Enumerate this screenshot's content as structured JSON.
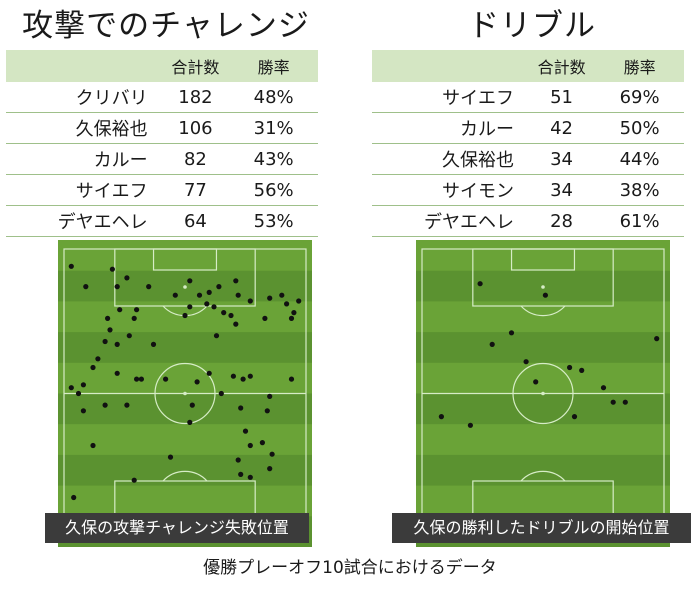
{
  "left_panel": {
    "title": "攻撃でのチャレンジ",
    "headers": [
      "",
      "合計数",
      "勝率"
    ],
    "rows": [
      {
        "name": "クリバリ",
        "count": "182",
        "rate": "48%"
      },
      {
        "name": "久保裕也",
        "count": "106",
        "rate": "31%"
      },
      {
        "name": "カルー",
        "count": "82",
        "rate": "43%"
      },
      {
        "name": "サイエフ",
        "count": "77",
        "rate": "56%"
      },
      {
        "name": "デヤエヘレ",
        "count": "64",
        "rate": "53%"
      }
    ],
    "caption": "久保の攻撃チャレンジ失敗位置"
  },
  "right_panel": {
    "title": "ドリブル",
    "headers": [
      "",
      "合計数",
      "勝率"
    ],
    "rows": [
      {
        "name": "サイエフ",
        "count": "51",
        "rate": "69%"
      },
      {
        "name": "カルー",
        "count": "42",
        "rate": "50%"
      },
      {
        "name": "久保裕也",
        "count": "34",
        "rate": "44%"
      },
      {
        "name": "サイモン",
        "count": "34",
        "rate": "38%"
      },
      {
        "name": "デヤエヘレ",
        "count": "28",
        "rate": "61%"
      }
    ],
    "caption": "久保の勝利したドリブルの開始位置"
  },
  "footer": "優勝プレーオフ10試合におけるデータ",
  "colors": {
    "pitch_light": "#6aa337",
    "pitch_dark": "#5b9230",
    "line": "#d6ecc6",
    "dot": "#111111",
    "table_header": "#d4e6c3",
    "caption_bg": "#3b3b3b"
  },
  "chart_data": [
    {
      "type": "scatter",
      "name": "攻撃チャレンジ失敗位置",
      "xlim": [
        0,
        100
      ],
      "ylim": [
        0,
        100
      ],
      "points": [
        [
          3,
          6
        ],
        [
          20,
          7
        ],
        [
          26,
          10
        ],
        [
          22,
          13
        ],
        [
          9,
          13
        ],
        [
          35,
          13
        ],
        [
          52,
          11
        ],
        [
          71,
          11
        ],
        [
          64,
          13
        ],
        [
          60,
          15
        ],
        [
          46,
          16
        ],
        [
          56,
          16
        ],
        [
          72,
          16
        ],
        [
          85,
          17
        ],
        [
          77,
          18
        ],
        [
          59,
          19
        ],
        [
          52,
          20
        ],
        [
          62,
          20
        ],
        [
          92,
          19
        ],
        [
          90,
          16
        ],
        [
          97,
          18
        ],
        [
          23,
          21
        ],
        [
          30,
          21
        ],
        [
          66,
          22
        ],
        [
          69,
          23
        ],
        [
          29,
          24
        ],
        [
          18,
          24
        ],
        [
          83,
          24
        ],
        [
          95,
          22
        ],
        [
          50,
          23
        ],
        [
          94,
          24
        ],
        [
          71,
          26
        ],
        [
          19,
          28
        ],
        [
          27,
          30
        ],
        [
          63,
          30
        ],
        [
          17,
          32
        ],
        [
          22,
          33
        ],
        [
          37,
          33
        ],
        [
          14,
          38
        ],
        [
          12,
          41
        ],
        [
          22,
          43
        ],
        [
          32,
          45
        ],
        [
          30,
          45
        ],
        [
          42,
          45
        ],
        [
          74,
          45
        ],
        [
          77,
          44
        ],
        [
          60,
          43
        ],
        [
          8,
          47
        ],
        [
          94,
          45
        ],
        [
          70,
          44
        ],
        [
          55,
          46
        ],
        [
          3,
          48
        ],
        [
          6,
          50
        ],
        [
          65,
          50
        ],
        [
          85,
          51
        ],
        [
          17,
          54
        ],
        [
          26,
          54
        ],
        [
          53,
          54
        ],
        [
          8,
          56
        ],
        [
          73,
          55
        ],
        [
          84,
          56
        ],
        [
          52,
          60
        ],
        [
          75,
          63
        ],
        [
          82,
          67
        ],
        [
          77,
          68
        ],
        [
          12,
          68
        ],
        [
          86,
          71
        ],
        [
          44,
          72
        ],
        [
          72,
          73
        ],
        [
          85,
          76
        ],
        [
          73,
          78
        ],
        [
          29,
          80
        ],
        [
          77,
          79
        ],
        [
          4,
          86
        ]
      ]
    },
    {
      "type": "scatter",
      "name": "勝利したドリブルの開始位置",
      "xlim": [
        0,
        100
      ],
      "ylim": [
        0,
        100
      ],
      "points": [
        [
          24,
          12
        ],
        [
          51,
          16
        ],
        [
          37,
          29
        ],
        [
          29,
          33
        ],
        [
          97,
          31
        ],
        [
          43,
          39
        ],
        [
          61,
          41
        ],
        [
          66,
          42
        ],
        [
          47,
          46
        ],
        [
          75,
          48
        ],
        [
          79,
          53
        ],
        [
          84,
          53
        ],
        [
          8,
          58
        ],
        [
          20,
          61
        ],
        [
          63,
          58
        ]
      ]
    }
  ]
}
